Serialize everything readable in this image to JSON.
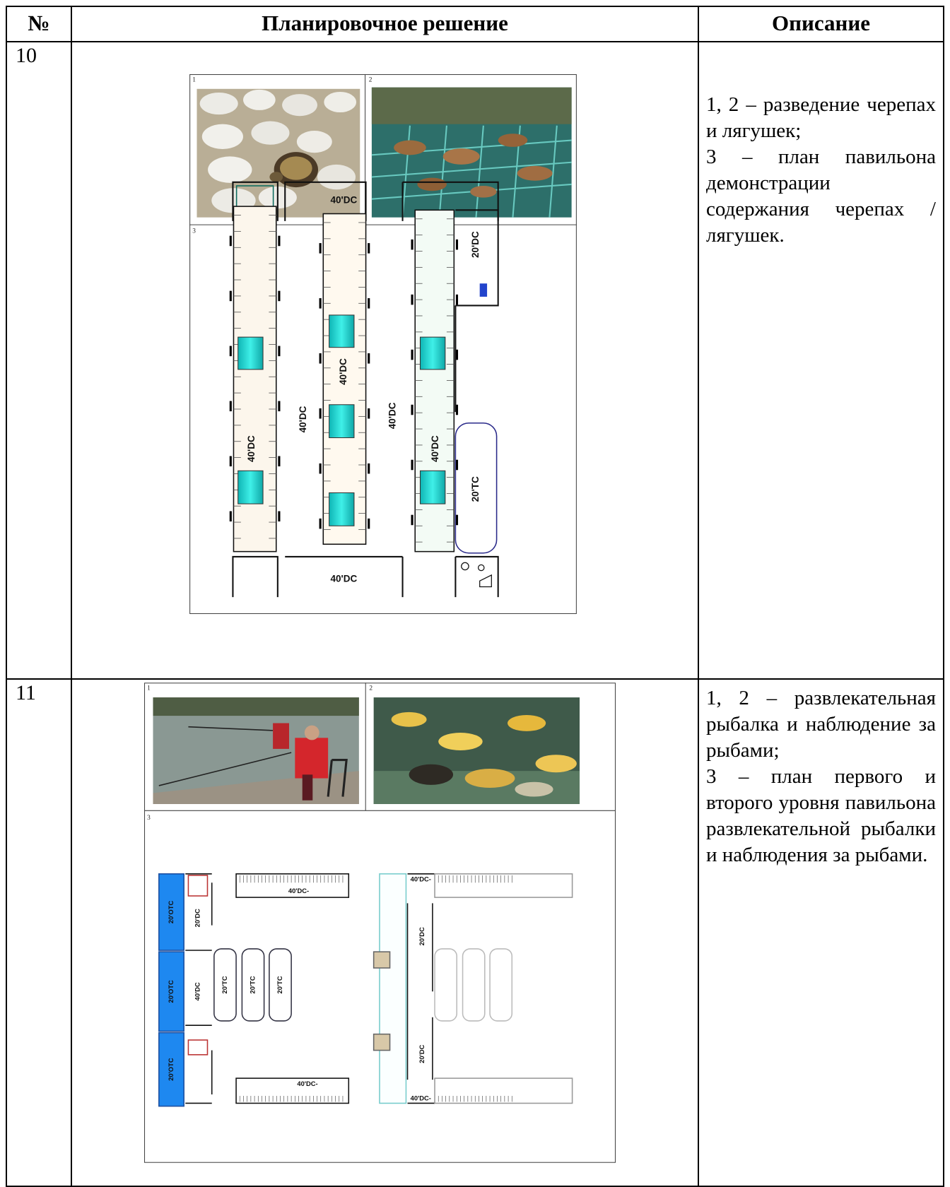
{
  "table": {
    "header": [
      "№",
      "Планировочное решение",
      "Описание"
    ],
    "rows": [
      {
        "number": "10",
        "figure": {
          "panel_labels": [
            "1",
            "2",
            "3"
          ],
          "plan_labels": [
            "40'DC",
            "40'DC",
            "40'DC",
            "40'DC",
            "40'DC",
            "40'DC",
            "20'DC",
            "20'TC",
            "40'DC"
          ]
        },
        "description": [
          "1, 2 – разведение черепах и лягушек;",
          "3 – план павильона демонстрации содержания черепах / лягушек."
        ]
      },
      {
        "number": "11",
        "figure": {
          "panel_labels": [
            "1",
            "2",
            "3"
          ],
          "plan_labels": [
            "20'OTC",
            "20'OTC",
            "20'OTC",
            "20'DC",
            "40'DC",
            "20'TC",
            "20'TC",
            "20'TC",
            "40'DC-",
            "40'DC-",
            "40'DC-",
            "20'DC",
            "20'DC",
            "40'DC-"
          ]
        },
        "description": [
          "1, 2 – развлекательная рыбалка и наблюдение за рыбами;",
          "3 – план первого и второго уровня павильона развлекательной рыбалки и наблюдения за рыбами."
        ]
      }
    ]
  }
}
